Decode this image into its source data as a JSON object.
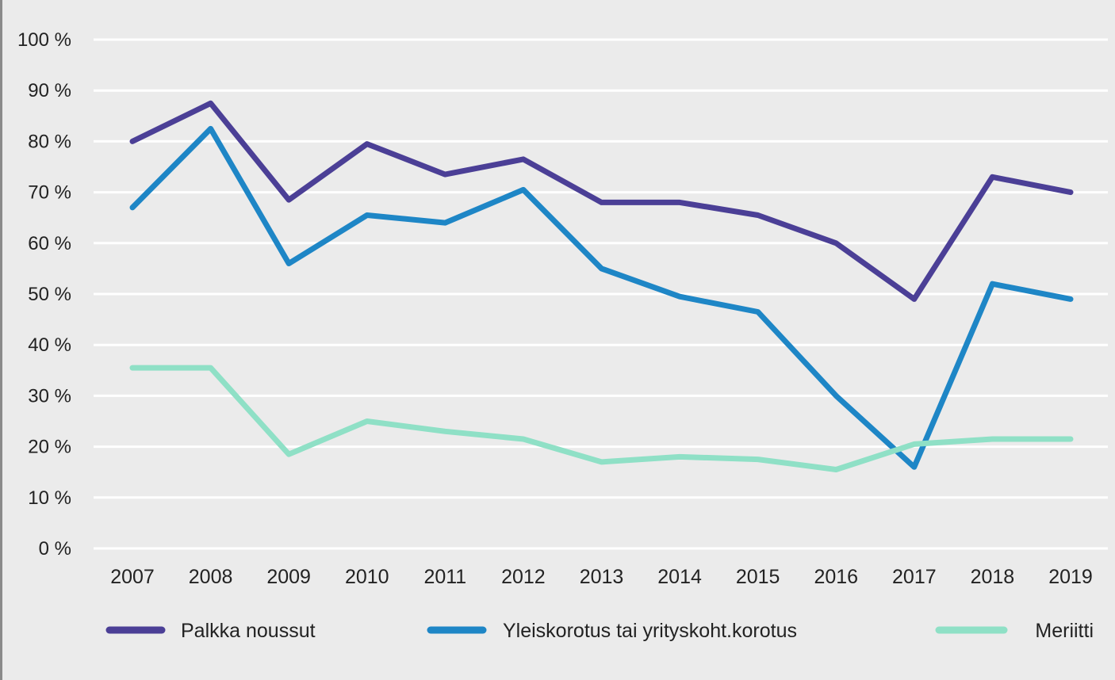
{
  "chart_data": {
    "type": "line",
    "title": "",
    "xlabel": "",
    "ylabel": "",
    "categories": [
      "2007",
      "2008",
      "2009",
      "2010",
      "2011",
      "2012",
      "2013",
      "2014",
      "2015",
      "2016",
      "2017",
      "2018",
      "2019"
    ],
    "ylim": [
      0,
      100
    ],
    "yticks": [
      0,
      10,
      20,
      30,
      40,
      50,
      60,
      70,
      80,
      90,
      100
    ],
    "ytick_labels": [
      "0 %",
      "10 %",
      "20 %",
      "30 %",
      "40 %",
      "50 %",
      "60 %",
      "70 %",
      "80 %",
      "90 %",
      "100 %"
    ],
    "grid": true,
    "legend_position": "bottom",
    "series": [
      {
        "name": "Palkka noussut",
        "color": "#4b3f96",
        "values": [
          80,
          87.5,
          68.5,
          79.5,
          73.5,
          76.5,
          68,
          68,
          65.5,
          60,
          49,
          73,
          70
        ]
      },
      {
        "name": "Yleiskorotus tai yrityskoht.korotus",
        "color": "#1e86c6",
        "values": [
          67,
          82.5,
          56,
          65.5,
          64,
          70.5,
          55,
          49.5,
          46.5,
          30,
          16,
          52,
          49
        ]
      },
      {
        "name": "Meriitti",
        "color": "#8fe0c6",
        "values": [
          35.5,
          35.5,
          18.5,
          25,
          23,
          21.5,
          17,
          18,
          17.5,
          15.5,
          20.5,
          21.5,
          21.5
        ]
      }
    ]
  }
}
